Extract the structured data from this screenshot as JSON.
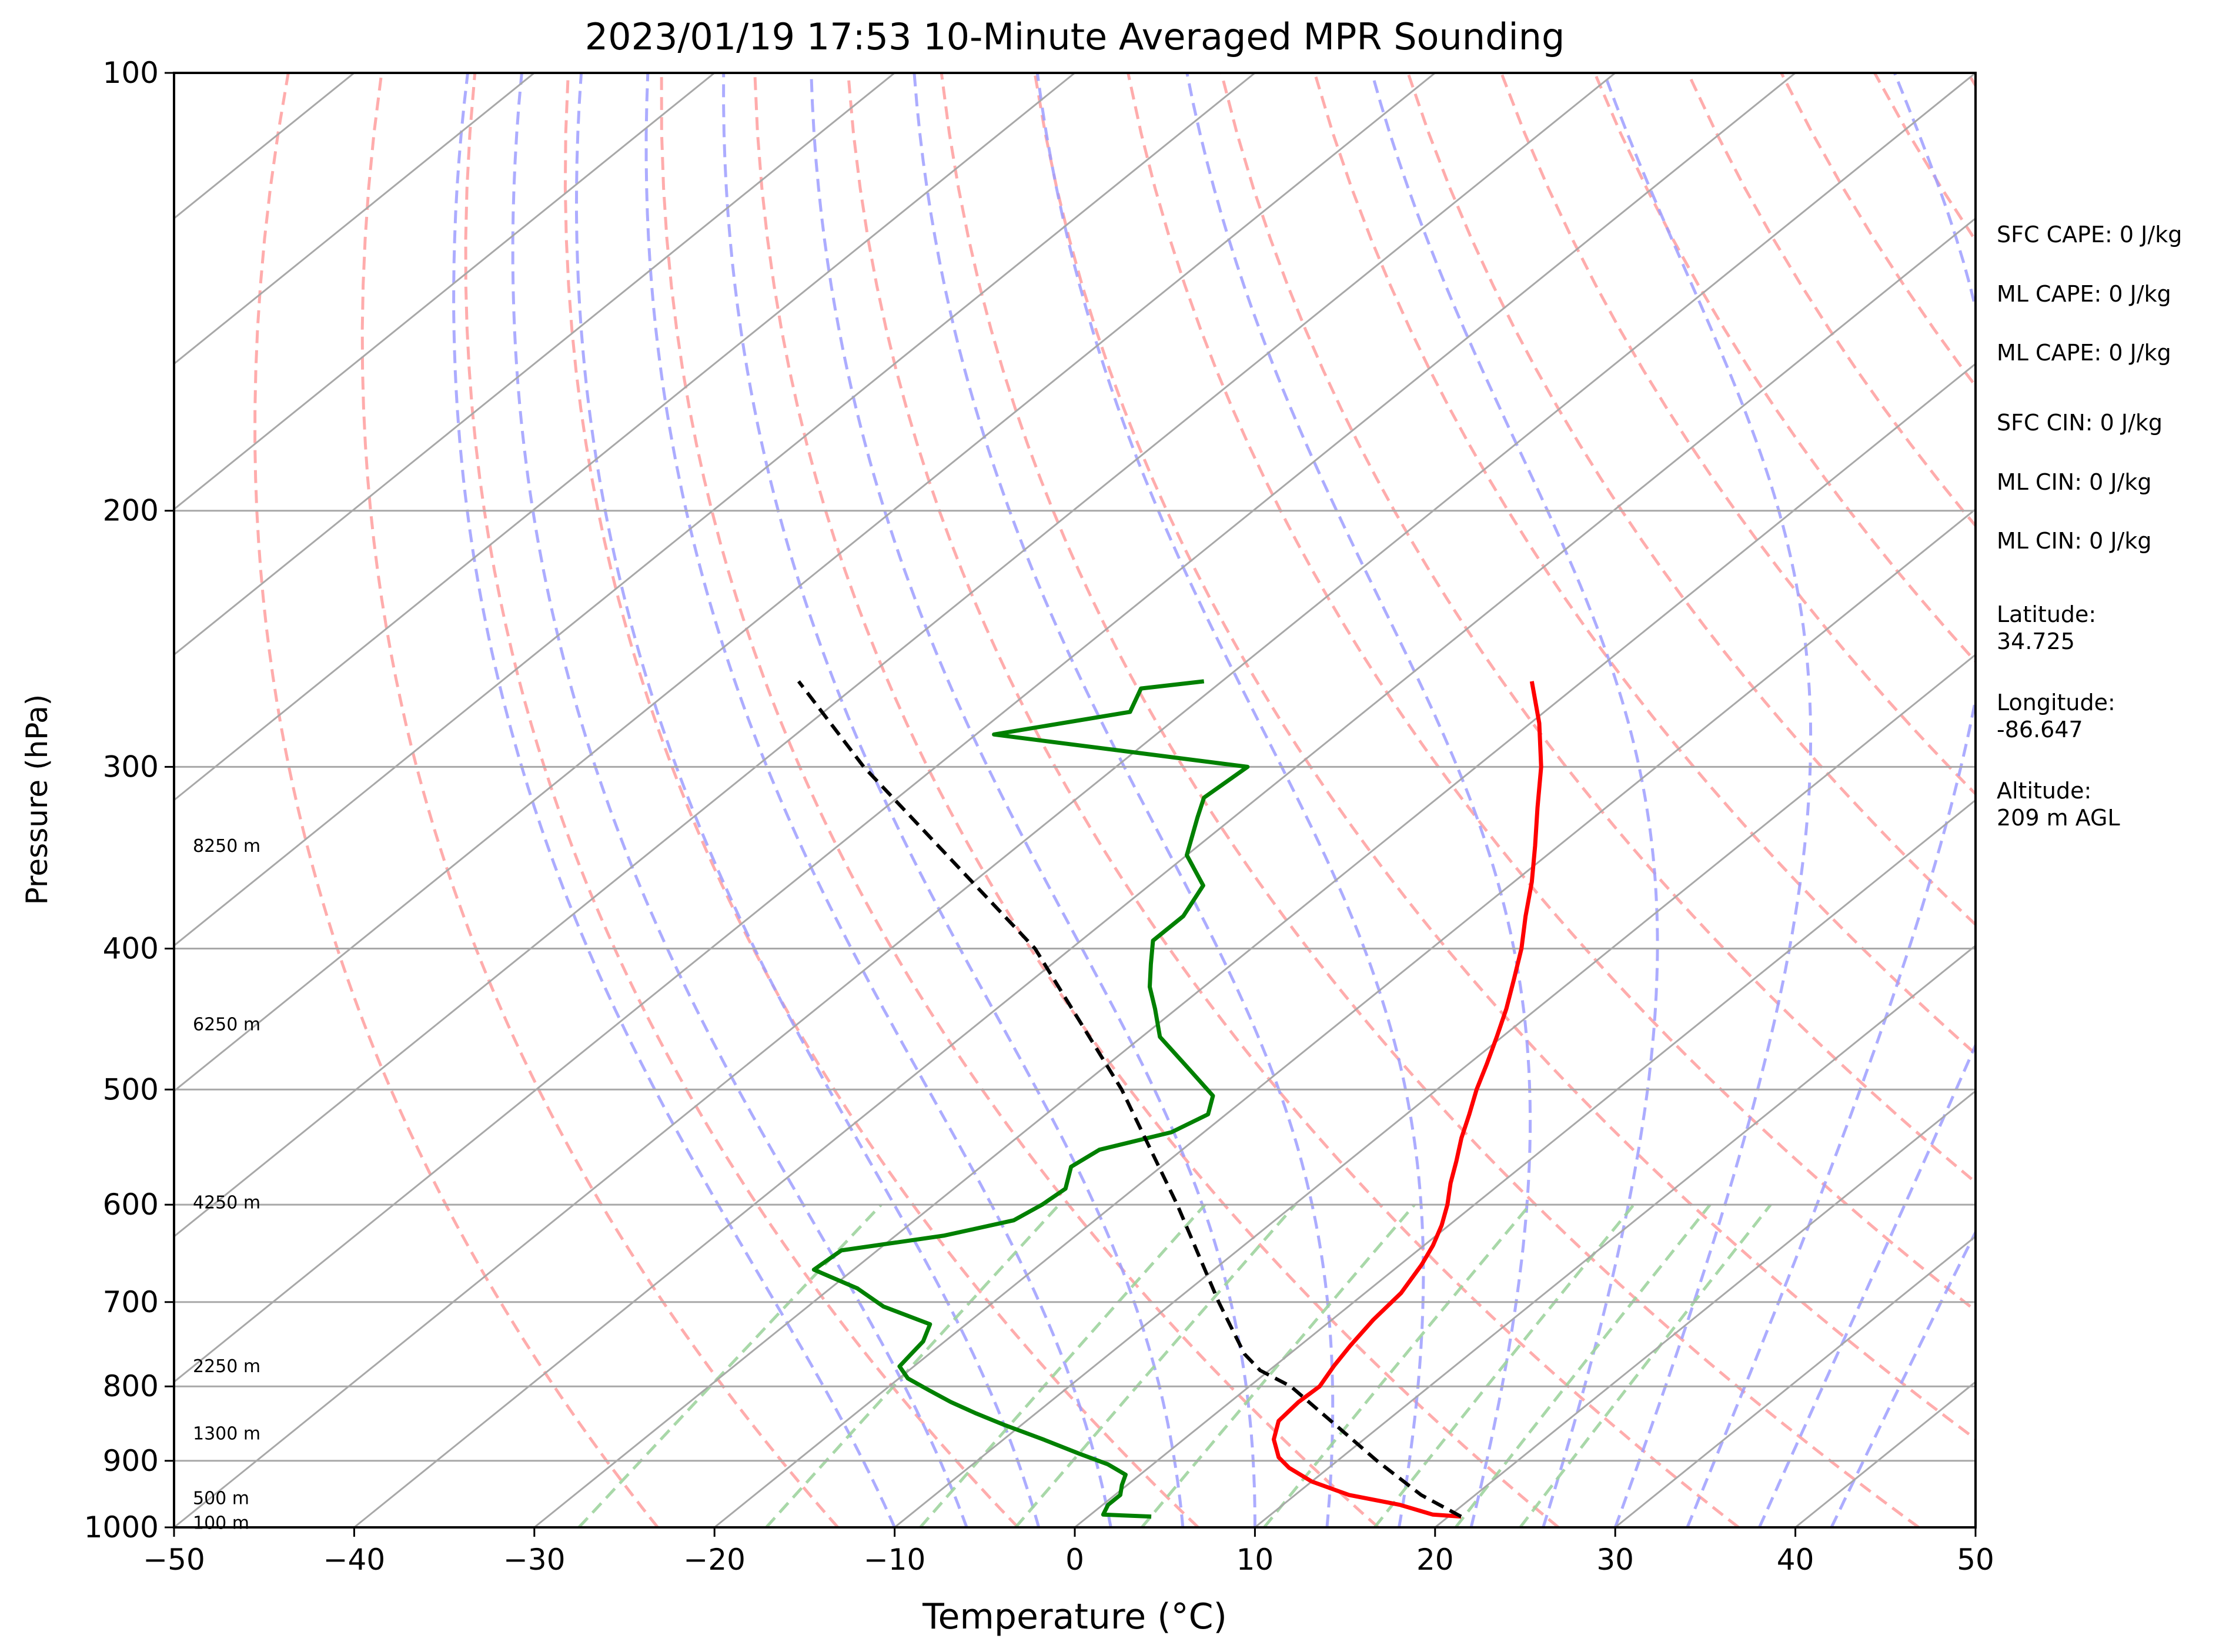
{
  "chart_data": {
    "type": "line",
    "title": "2023/01/19 17:53 10-Minute Averaged MPR Sounding",
    "xlabel": "Temperature (°C)",
    "ylabel": "Pressure (hPa)",
    "xlim": [
      -50,
      50
    ],
    "ylim": [
      1000,
      100
    ],
    "y_scale": "log",
    "skew": true,
    "x_ticks": [
      "−50",
      "−40",
      "−30",
      "−20",
      "−10",
      "0",
      "10",
      "20",
      "30",
      "40",
      "50"
    ],
    "y_ticks": [
      "100",
      "200",
      "300",
      "400",
      "500",
      "600",
      "700",
      "800",
      "900",
      "1000"
    ],
    "height_labels": [
      {
        "p": 993,
        "label": "100 m"
      },
      {
        "p": 955,
        "label": "500 m"
      },
      {
        "p": 862,
        "label": "1300 m"
      },
      {
        "p": 775,
        "label": "2250 m"
      },
      {
        "p": 598,
        "label": "4250 m"
      },
      {
        "p": 451,
        "label": "6250 m"
      },
      {
        "p": 340,
        "label": "8250 m"
      }
    ],
    "info_text": [
      "SFC CAPE: 0 J/kg",
      "ML CAPE: 0 J/kg",
      "ML CAPE: 0 J/kg",
      "SFC CIN: 0 J/kg",
      "ML CIN: 0 J/kg",
      "ML CIN: 0 J/kg",
      "Latitude:\n34.725",
      "Longitude:\n-86.647",
      "Altitude:\n209 m AGL"
    ],
    "colors": {
      "temperature": "#ff0000",
      "dewpoint": "#008000",
      "parcel": "#000000",
      "isotherms": "#a8a8a8",
      "isobars": "#a8a8a8",
      "dry_adiabats": "#ff9e9e",
      "moist_adiabats": "#9e9eff",
      "mixing_ratio": "#9fd49f"
    },
    "series": [
      {
        "key": "temperature",
        "p": [
          983,
          980,
          965,
          950,
          930,
          910,
          895,
          870,
          845,
          820,
          800,
          775,
          750,
          720,
          690,
          660,
          640,
          620,
          600,
          580,
          560,
          540,
          520,
          500,
          480,
          460,
          440,
          420,
          400,
          380,
          360,
          340,
          320,
          300,
          280,
          262
        ],
        "t": [
          20.7,
          19.0,
          16.5,
          13.0,
          10.0,
          7.8,
          6.5,
          5.0,
          4.0,
          3.8,
          3.9,
          3.3,
          2.8,
          2.3,
          2.0,
          1.2,
          0.5,
          -0.4,
          -1.5,
          -2.8,
          -4.0,
          -5.3,
          -6.5,
          -7.8,
          -9.0,
          -10.3,
          -11.7,
          -13.3,
          -15.0,
          -17.0,
          -19.0,
          -21.3,
          -23.8,
          -26.4,
          -29.5,
          -32.8
        ]
      },
      {
        "key": "dewpoint",
        "p": [
          983,
          980,
          965,
          950,
          935,
          920,
          905,
          890,
          870,
          850,
          835,
          820,
          805,
          790,
          775,
          760,
          745,
          725,
          705,
          685,
          665,
          645,
          630,
          615,
          600,
          585,
          565,
          550,
          535,
          520,
          505,
          480,
          460,
          440,
          425,
          410,
          395,
          380,
          362,
          345,
          325,
          315,
          300,
          285,
          275,
          265,
          262
        ],
        "t": [
          3.5,
          0.7,
          0.3,
          0.3,
          -0.3,
          -0.8,
          -2.5,
          -4.8,
          -7.8,
          -11.0,
          -13.3,
          -15.5,
          -17.5,
          -19.5,
          -20.8,
          -21.0,
          -21.2,
          -22.0,
          -25.8,
          -28.5,
          -32.2,
          -32.0,
          -27.3,
          -24.5,
          -24.0,
          -23.8,
          -25.0,
          -24.6,
          -21.8,
          -21.0,
          -22.0,
          -25.8,
          -29.0,
          -31.2,
          -33.0,
          -34.5,
          -36.0,
          -36.0,
          -37.0,
          -40.0,
          -42.0,
          -43.0,
          -42.7,
          -59.0,
          -53.0,
          -54.0,
          -51.0
        ]
      },
      {
        "key": "parcel",
        "p": [
          983,
          950,
          900,
          850,
          800,
          780,
          760,
          700,
          600,
          500,
          400,
          300,
          262
        ],
        "t": [
          20.7,
          17.0,
          12.2,
          7.4,
          2.3,
          -0.5,
          -2.5,
          -7.5,
          -16.5,
          -27.5,
          -42.0,
          -64.0,
          -73.5
        ]
      }
    ]
  }
}
